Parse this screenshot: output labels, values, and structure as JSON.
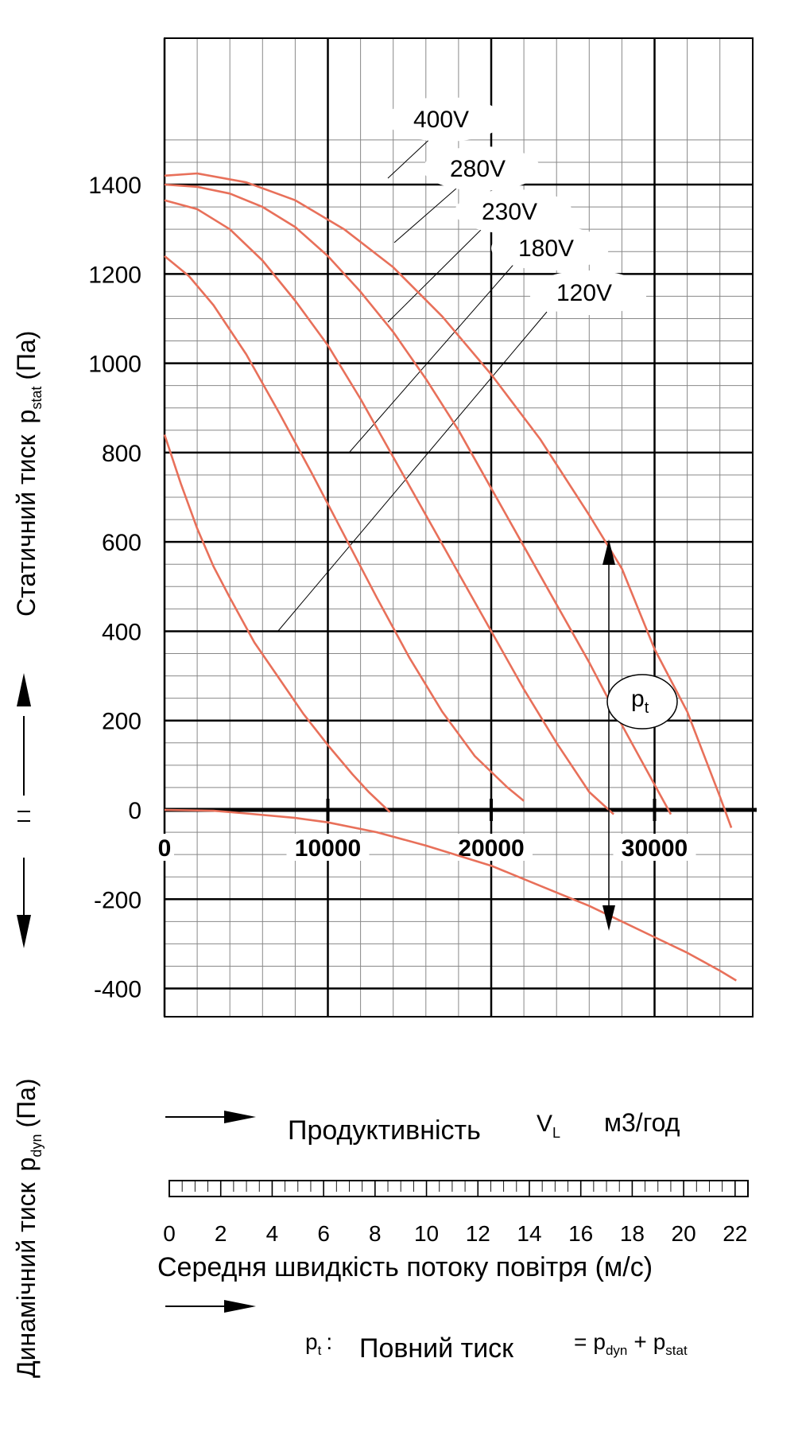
{
  "chart_data": {
    "type": "line",
    "x_unit_label": "м3/год",
    "xlabel_prefix": "Продуктивність",
    "xlabel_symbol": "V",
    "xlabel_symbol_sub": "L",
    "ylabel_top": "Статичний  тиск",
    "ylabel_top_symbol": "p",
    "ylabel_top_symbol_sub": "stat",
    "ylabel_top_unit": "(Па)",
    "ylabel_bottom": "Динамічний тиск",
    "ylabel_bottom_symbol": "p",
    "ylabel_bottom_symbol_sub": "dyn",
    "ylabel_bottom_unit": "(Па)",
    "xlim": [
      0,
      36000
    ],
    "ylim": [
      -400,
      1500
    ],
    "y_ticks": [
      "1400",
      "1200",
      "1000",
      "800",
      "600",
      "400",
      "200",
      "0",
      "-200",
      "-400"
    ],
    "y_tick_values": [
      1400,
      1200,
      1000,
      800,
      600,
      400,
      200,
      0,
      -200,
      -400
    ],
    "x_ticks": [
      "0",
      "10000",
      "20000",
      "30000"
    ],
    "x_tick_values": [
      0,
      10000,
      20000,
      30000
    ],
    "grid": true,
    "series": [
      {
        "name": "400V",
        "color": "#e8705a",
        "x": [
          0,
          2000,
          5000,
          8000,
          11000,
          14000,
          17000,
          20000,
          23000,
          26000,
          28000,
          30000,
          32000,
          34000,
          34700
        ],
        "y": [
          1420,
          1425,
          1405,
          1365,
          1300,
          1215,
          1105,
          975,
          830,
          660,
          540,
          360,
          220,
          30,
          -40
        ]
      },
      {
        "name": "280V",
        "color": "#e8705a",
        "x": [
          0,
          2000,
          4000,
          6000,
          8000,
          10000,
          12000,
          14000,
          16000,
          18000,
          20000,
          22000,
          24000,
          26000,
          28000,
          29500,
          31000
        ],
        "y": [
          1400,
          1395,
          1380,
          1350,
          1305,
          1240,
          1160,
          1070,
          965,
          850,
          720,
          590,
          460,
          330,
          190,
          90,
          -10
        ]
      },
      {
        "name": "230V",
        "color": "#e8705a",
        "x": [
          0,
          2000,
          4000,
          6000,
          8000,
          10000,
          12000,
          14000,
          16000,
          18000,
          20000,
          22000,
          24000,
          26000,
          27500
        ],
        "y": [
          1365,
          1345,
          1300,
          1230,
          1140,
          1040,
          920,
          790,
          660,
          530,
          400,
          270,
          150,
          40,
          -10
        ]
      },
      {
        "name": "180V",
        "color": "#e8705a",
        "x": [
          0,
          1500,
          3000,
          5000,
          7000,
          9000,
          11000,
          13000,
          15000,
          17000,
          19000,
          21000,
          22000
        ],
        "y": [
          1240,
          1195,
          1130,
          1020,
          890,
          755,
          615,
          475,
          340,
          220,
          120,
          50,
          20
        ]
      },
      {
        "name": "120V",
        "color": "#e8705a",
        "x": [
          0,
          1000,
          2000,
          3000,
          4000,
          5500,
          7000,
          8500,
          10000,
          11500,
          12500,
          13800
        ],
        "y": [
          840,
          730,
          630,
          545,
          475,
          375,
          295,
          215,
          145,
          80,
          40,
          -5
        ]
      },
      {
        "name": "",
        "color": "#e8705a",
        "x": [
          0,
          3000,
          5000,
          8000,
          10000,
          13000,
          16000,
          20000,
          23000,
          26000,
          28000,
          30000,
          32000,
          34000,
          35000
        ],
        "y": [
          0,
          -2,
          -8,
          -18,
          -28,
          -50,
          -80,
          -125,
          -170,
          -215,
          -250,
          -285,
          -320,
          -360,
          -382
        ]
      }
    ],
    "pt_label": "p",
    "pt_label_sub": "t",
    "velocity_scale": {
      "ticks": [
        "0",
        "2",
        "4",
        "6",
        "8",
        "10",
        "12",
        "14",
        "16",
        "18",
        "20",
        "22"
      ],
      "tick_values": [
        0,
        2,
        4,
        6,
        8,
        10,
        12,
        14,
        16,
        18,
        20,
        22
      ],
      "max": 22.5,
      "label": "Середня швидкість потоку повітря  (м/с)"
    },
    "footnote": {
      "symbol": "p",
      "symbol_sub": "t",
      "colon": ":",
      "text": "Повний тиск",
      "equals": "=",
      "p1": "p",
      "p1_sub": "dyn",
      "plus": "+",
      "p2": "p",
      "p2_sub": "stat"
    }
  }
}
